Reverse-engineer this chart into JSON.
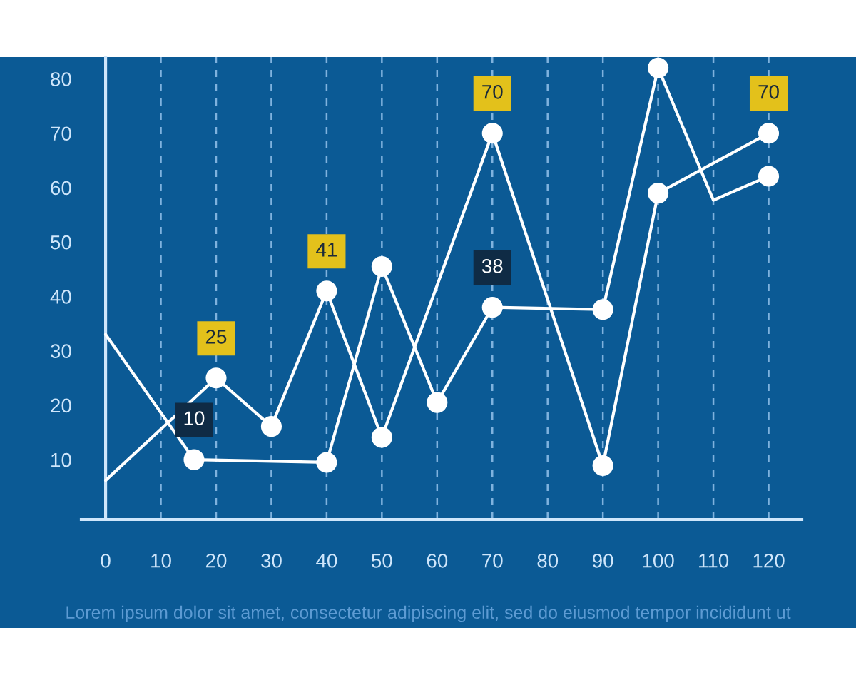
{
  "chart_data": {
    "type": "line",
    "annotations": [
      "Lorem ipsum dolor sit amet, consectetur adipiscing elit, sed do eiusmod tempor incididunt ut"
    ],
    "xlim": [
      -4.4,
      126
    ],
    "xticks": [
      0,
      10,
      20,
      30,
      40,
      50,
      60,
      70,
      80,
      90,
      100,
      110,
      120
    ],
    "ylim": [
      -1,
      84
    ],
    "yticks": [
      10,
      20,
      30,
      40,
      50,
      60,
      70,
      80
    ],
    "grid": "x",
    "series": [
      {
        "type": "line",
        "color": "#ffffff",
        "marker": "none",
        "x": [
          0,
          20,
          30,
          40,
          50,
          70,
          90,
          100,
          120
        ],
        "values": [
          6.2,
          25,
          16.1,
          41,
          14.1,
          70,
          8.9,
          59,
          70
        ]
      },
      {
        "type": "line",
        "color": "#ffffff",
        "marker": "none",
        "x": [
          0,
          16,
          40,
          50,
          60,
          70,
          90,
          100,
          110,
          120
        ],
        "values": [
          33,
          10,
          9.5,
          45.5,
          20.5,
          38,
          37.6,
          82,
          57.7,
          62.1
        ]
      },
      {
        "type": "scatter",
        "color": "#ffffff",
        "marker": "circle",
        "x": [
          20,
          30,
          40,
          50,
          70,
          90,
          100,
          120
        ],
        "values": [
          25,
          16.1,
          41,
          14.1,
          70,
          8.9,
          59,
          70
        ],
        "value_labels": [
          "25",
          null,
          "41",
          null,
          "70",
          null,
          null,
          "70"
        ]
      },
      {
        "type": "scatter",
        "color": "#ffffff",
        "marker": "circle",
        "x": [
          16,
          40,
          50,
          60,
          70,
          90,
          100,
          120
        ],
        "values": [
          10,
          9.5,
          45.5,
          20.5,
          38,
          37.6,
          82,
          62.1
        ],
        "value_labels": [
          "10",
          null,
          null,
          null,
          "38",
          null,
          null,
          null
        ]
      }
    ]
  }
}
